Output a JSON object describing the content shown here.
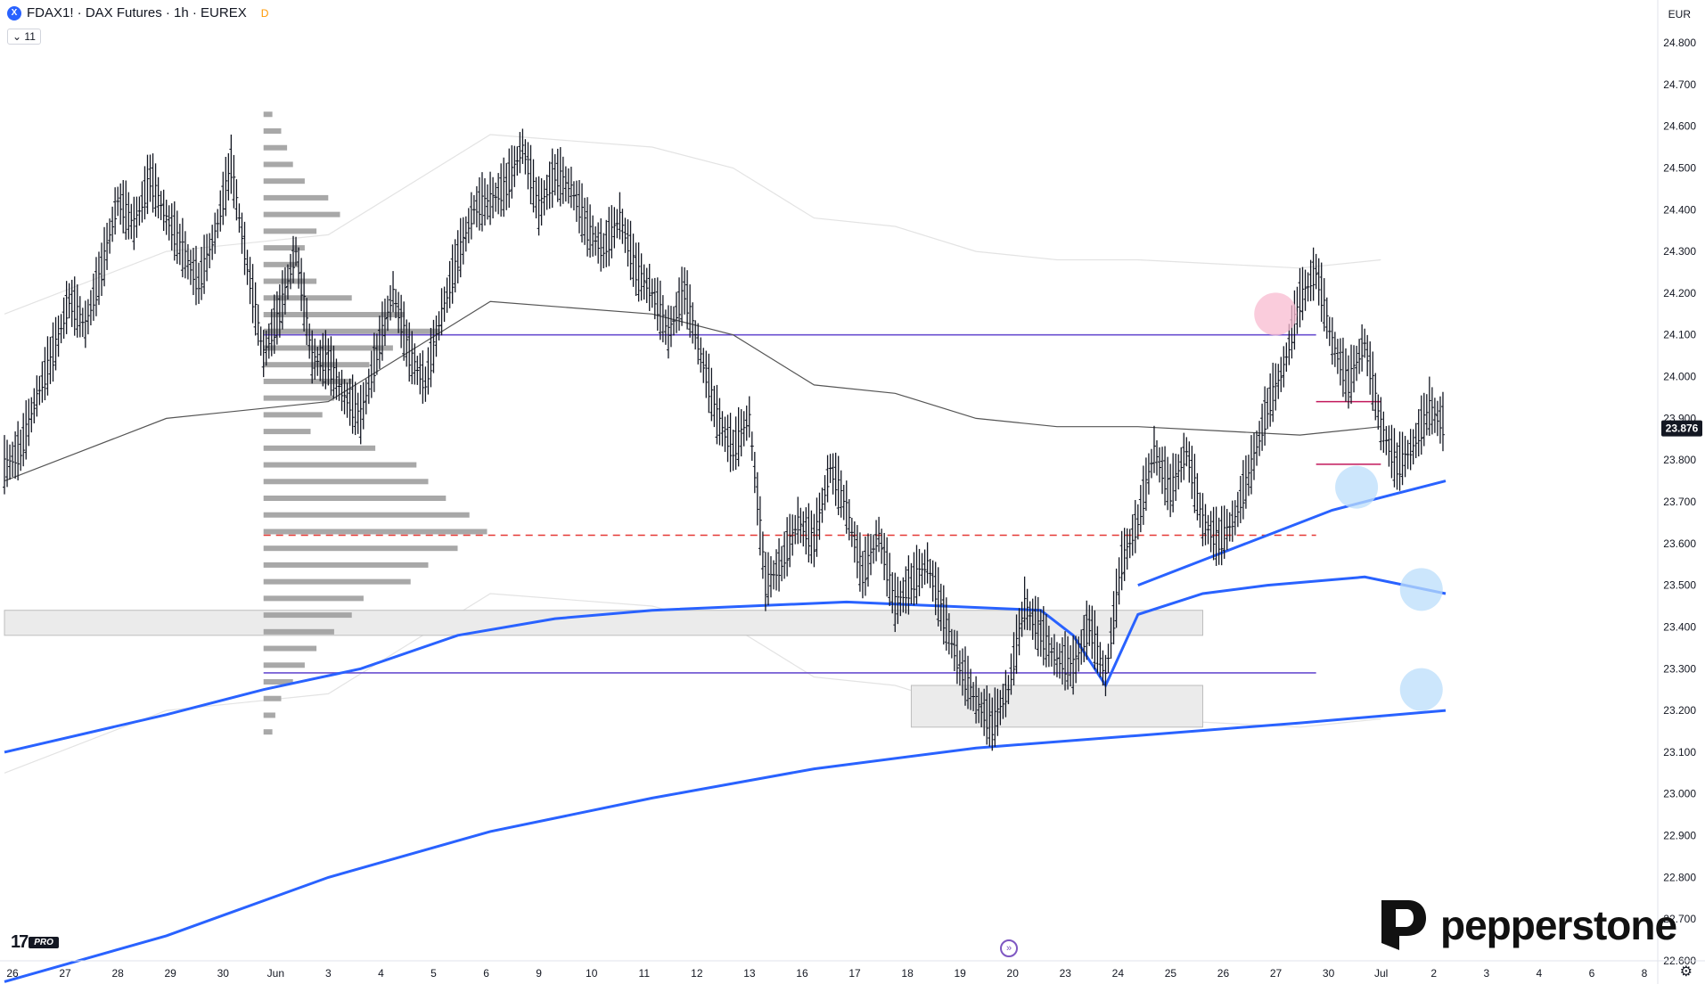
{
  "header": {
    "symbol_icon": "X",
    "title": "FDAX1! · DAX Futures · 1h · EUREX",
    "badge": "D",
    "indicator_count": "11",
    "indicator_icon": "chevron-down-icon"
  },
  "currency": "EUR",
  "brand": {
    "name": "pepperstone",
    "tv_mark": "17",
    "tv_badge": "PRO"
  },
  "goto_icon": "go-to-realtime-icon",
  "settings_icon": "gear-icon",
  "chart_data": {
    "type": "candlestick",
    "y_ticks": [
      "24.800",
      "24.700",
      "24.600",
      "24.500",
      "24.400",
      "24.300",
      "24.200",
      "24.100",
      "24.000",
      "23.900",
      "23.800",
      "23.700",
      "23.600",
      "23.500",
      "23.400",
      "23.300",
      "23.200",
      "23.100",
      "23.000",
      "22.900",
      "22.800",
      "22.700",
      "22.600"
    ],
    "ylim": [
      22600,
      24800
    ],
    "x_ticks": [
      "26",
      "27",
      "28",
      "29",
      "30",
      "Jun",
      "3",
      "4",
      "5",
      "6",
      "9",
      "10",
      "11",
      "12",
      "13",
      "16",
      "17",
      "18",
      "19",
      "20",
      "23",
      "24",
      "25",
      "26",
      "27",
      "30",
      "Jul",
      "2",
      "3",
      "4",
      "6",
      "8"
    ],
    "last_price": "23.876",
    "price_path": [
      [
        0,
        23780
      ],
      [
        1,
        23820
      ],
      [
        2,
        23950
      ],
      [
        3,
        24050
      ],
      [
        4,
        24180
      ],
      [
        5,
        24120
      ],
      [
        6,
        24250
      ],
      [
        7,
        24420
      ],
      [
        8,
        24360
      ],
      [
        9,
        24470
      ],
      [
        10,
        24380
      ],
      [
        11,
        24300
      ],
      [
        12,
        24220
      ],
      [
        13,
        24340
      ],
      [
        14,
        24500
      ],
      [
        15,
        24260
      ],
      [
        16,
        24050
      ],
      [
        17,
        24150
      ],
      [
        18,
        24300
      ],
      [
        19,
        24040
      ],
      [
        20,
        24030
      ],
      [
        21,
        23950
      ],
      [
        22,
        23900
      ],
      [
        23,
        24050
      ],
      [
        24,
        24200
      ],
      [
        25,
        24050
      ],
      [
        26,
        23980
      ],
      [
        27,
        24150
      ],
      [
        28,
        24280
      ],
      [
        29,
        24400
      ],
      [
        30,
        24420
      ],
      [
        31,
        24450
      ],
      [
        32,
        24550
      ],
      [
        33,
        24400
      ],
      [
        34,
        24480
      ],
      [
        35,
        24450
      ],
      [
        36,
        24350
      ],
      [
        37,
        24300
      ],
      [
        38,
        24380
      ],
      [
        39,
        24250
      ],
      [
        40,
        24200
      ],
      [
        41,
        24100
      ],
      [
        42,
        24200
      ],
      [
        43,
        24050
      ],
      [
        44,
        23900
      ],
      [
        45,
        23820
      ],
      [
        46,
        23900
      ],
      [
        47,
        23500
      ],
      [
        48,
        23550
      ],
      [
        49,
        23650
      ],
      [
        50,
        23600
      ],
      [
        51,
        23780
      ],
      [
        52,
        23680
      ],
      [
        53,
        23520
      ],
      [
        54,
        23620
      ],
      [
        55,
        23450
      ],
      [
        56,
        23500
      ],
      [
        57,
        23550
      ],
      [
        58,
        23420
      ],
      [
        59,
        23300
      ],
      [
        60,
        23220
      ],
      [
        61,
        23160
      ],
      [
        62,
        23250
      ],
      [
        63,
        23450
      ],
      [
        64,
        23380
      ],
      [
        65,
        23320
      ],
      [
        66,
        23300
      ],
      [
        67,
        23400
      ],
      [
        68,
        23280
      ],
      [
        69,
        23550
      ],
      [
        70,
        23650
      ],
      [
        71,
        23820
      ],
      [
        72,
        23720
      ],
      [
        73,
        23820
      ],
      [
        74,
        23650
      ],
      [
        75,
        23600
      ],
      [
        76,
        23660
      ],
      [
        77,
        23780
      ],
      [
        78,
        23920
      ],
      [
        79,
        24020
      ],
      [
        80,
        24180
      ],
      [
        81,
        24250
      ],
      [
        82,
        24080
      ],
      [
        83,
        23980
      ],
      [
        84,
        24080
      ],
      [
        85,
        23880
      ],
      [
        86,
        23780
      ],
      [
        87,
        23830
      ],
      [
        88,
        23920
      ],
      [
        89,
        23876
      ]
    ],
    "x_range": [
      0,
      89
    ],
    "vwap_upper": [
      [
        0,
        23750
      ],
      [
        10,
        23900
      ],
      [
        20,
        23940
      ],
      [
        30,
        24180
      ],
      [
        40,
        24150
      ],
      [
        45,
        24100
      ],
      [
        50,
        23980
      ],
      [
        55,
        23960
      ],
      [
        60,
        23900
      ],
      [
        65,
        23880
      ],
      [
        70,
        23880
      ],
      [
        75,
        23870
      ],
      [
        80,
        23860
      ],
      [
        85,
        23880
      ]
    ],
    "vwap_lower_blue": [
      [
        0,
        23100
      ],
      [
        10,
        23190
      ],
      [
        16,
        23250
      ],
      [
        22,
        23300
      ],
      [
        28,
        23380
      ],
      [
        34,
        23420
      ],
      [
        40,
        23440
      ],
      [
        46,
        23450
      ],
      [
        52,
        23460
      ],
      [
        58,
        23450
      ],
      [
        64,
        23440
      ],
      [
        66,
        23380
      ],
      [
        68,
        23260
      ],
      [
        70,
        23430
      ],
      [
        74,
        23480
      ],
      [
        78,
        23500
      ],
      [
        84,
        23520
      ],
      [
        89,
        23480
      ]
    ],
    "vwap_lower2_blue": [
      [
        0,
        22550
      ],
      [
        10,
        22660
      ],
      [
        20,
        22800
      ],
      [
        30,
        22910
      ],
      [
        40,
        22990
      ],
      [
        50,
        23060
      ],
      [
        60,
        23110
      ],
      [
        70,
        23140
      ],
      [
        80,
        23170
      ],
      [
        89,
        23200
      ]
    ],
    "vwap_short_blue": [
      [
        70,
        23500
      ],
      [
        74,
        23560
      ],
      [
        78,
        23620
      ],
      [
        82,
        23680
      ],
      [
        86,
        23720
      ],
      [
        89,
        23750
      ]
    ],
    "horizontal_levels": [
      {
        "name": "resistance",
        "value": 24100,
        "color": "#6a4fd0",
        "style": "solid"
      },
      {
        "name": "support",
        "value": 23290,
        "color": "#6a4fd0",
        "style": "solid"
      },
      {
        "name": "poc",
        "value": 23620,
        "color": "#e53935",
        "style": "dashed"
      },
      {
        "name": "range-high",
        "value": 23940,
        "color": "#c2185b",
        "style": "solid"
      },
      {
        "name": "range-low",
        "value": 23790,
        "color": "#c2185b",
        "style": "solid"
      }
    ],
    "zones": [
      {
        "name": "demand-zone-1",
        "x0": 0,
        "x1": 74,
        "y0": 23380,
        "y1": 23440
      },
      {
        "name": "demand-zone-2",
        "x0": 56,
        "x1": 74,
        "y0": 23160,
        "y1": 23260
      }
    ],
    "volume_profile": {
      "x_start": 16,
      "bins": [
        [
          24620,
          3
        ],
        [
          24580,
          6
        ],
        [
          24540,
          8
        ],
        [
          24500,
          10
        ],
        [
          24460,
          14
        ],
        [
          24420,
          22
        ],
        [
          24380,
          26
        ],
        [
          24340,
          18
        ],
        [
          24300,
          14
        ],
        [
          24260,
          12
        ],
        [
          24220,
          18
        ],
        [
          24180,
          30
        ],
        [
          24140,
          48
        ],
        [
          24100,
          60
        ],
        [
          24060,
          44
        ],
        [
          24020,
          36
        ],
        [
          23980,
          30
        ],
        [
          23940,
          24
        ],
        [
          23900,
          20
        ],
        [
          23860,
          16
        ],
        [
          23820,
          38
        ],
        [
          23780,
          52
        ],
        [
          23740,
          56
        ],
        [
          23700,
          62
        ],
        [
          23660,
          70
        ],
        [
          23620,
          76
        ],
        [
          23580,
          66
        ],
        [
          23540,
          56
        ],
        [
          23500,
          50
        ],
        [
          23460,
          34
        ],
        [
          23420,
          30
        ],
        [
          23380,
          24
        ],
        [
          23340,
          18
        ],
        [
          23300,
          14
        ],
        [
          23260,
          10
        ],
        [
          23220,
          6
        ],
        [
          23180,
          4
        ],
        [
          23140,
          3
        ]
      ]
    },
    "markers": [
      {
        "name": "rejection-marker",
        "x": 78.5,
        "value": 24150,
        "color": "#f8bbd0"
      },
      {
        "name": "support-marker-1",
        "x": 83.5,
        "value": 23735,
        "color": "#bbdefb"
      },
      {
        "name": "target-marker-1",
        "x": 87.5,
        "value": 23490,
        "color": "#bbdefb"
      },
      {
        "name": "target-marker-2",
        "x": 87.5,
        "value": 23250,
        "color": "#bbdefb"
      }
    ]
  }
}
